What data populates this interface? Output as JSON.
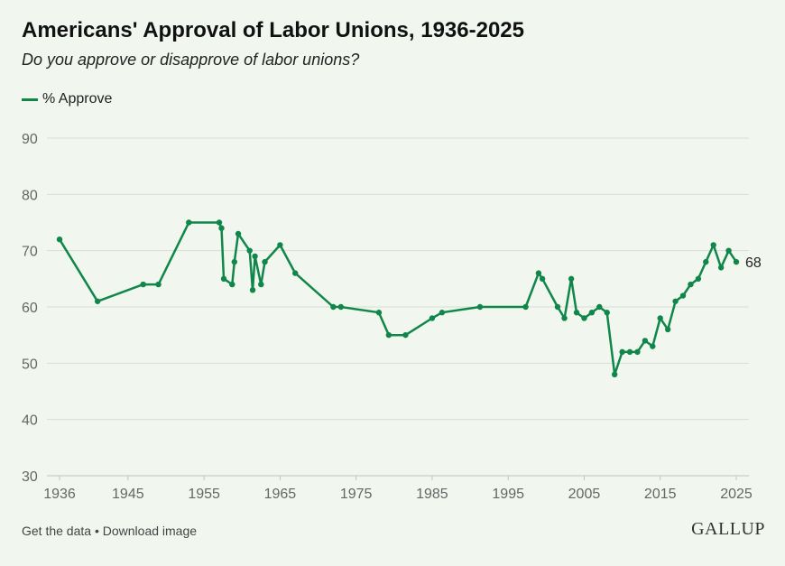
{
  "title": "Americans' Approval of Labor Unions, 1936-2025",
  "subtitle": "Do you approve or disapprove of labor unions?",
  "footer": {
    "get_data": "Get the data",
    "separator": "•",
    "download": "Download image",
    "brand": "GALLUP"
  },
  "colors": {
    "series": "#10864a",
    "grid": "#d8ddd6",
    "axis_text": "#666666",
    "background": "#f1f7ef"
  },
  "chart_data": {
    "type": "line",
    "title": "Americans' Approval of Labor Unions, 1936-2025",
    "subtitle": "Do you approve or disapprove of labor unions?",
    "xlabel": "",
    "ylabel": "",
    "xlim": [
      1936,
      2025
    ],
    "ylim": [
      30,
      90
    ],
    "grid": true,
    "legend": "top-left",
    "x_ticks": [
      1936,
      1945,
      1955,
      1965,
      1975,
      1985,
      1995,
      2005,
      2015,
      2025
    ],
    "y_ticks": [
      30,
      40,
      50,
      60,
      70,
      80,
      90
    ],
    "end_label": "68",
    "series": [
      {
        "name": "% Approve",
        "color": "#10864a",
        "points": [
          [
            1936,
            72
          ],
          [
            1941,
            61
          ],
          [
            1947,
            64
          ],
          [
            1949,
            64
          ],
          [
            1953,
            75
          ],
          [
            1957,
            75
          ],
          [
            1957.3,
            74
          ],
          [
            1957.6,
            65
          ],
          [
            1958.7,
            64
          ],
          [
            1959,
            68
          ],
          [
            1959.5,
            73
          ],
          [
            1961,
            70
          ],
          [
            1961.4,
            63
          ],
          [
            1961.7,
            69
          ],
          [
            1962.5,
            64
          ],
          [
            1963,
            68
          ],
          [
            1965,
            71
          ],
          [
            1967,
            66
          ],
          [
            1972,
            60
          ],
          [
            1973,
            60
          ],
          [
            1978,
            59
          ],
          [
            1979.3,
            55
          ],
          [
            1981.5,
            55
          ],
          [
            1985,
            58
          ],
          [
            1986.3,
            59
          ],
          [
            1991.3,
            60
          ],
          [
            1997.3,
            60
          ],
          [
            1999,
            66
          ],
          [
            1999.5,
            65
          ],
          [
            2001.5,
            60
          ],
          [
            2002.4,
            58
          ],
          [
            2003.3,
            65
          ],
          [
            2004,
            59
          ],
          [
            2005,
            58
          ],
          [
            2006,
            59
          ],
          [
            2007,
            60
          ],
          [
            2008,
            59
          ],
          [
            2009,
            48
          ],
          [
            2010,
            52
          ],
          [
            2011,
            52
          ],
          [
            2012,
            52
          ],
          [
            2013,
            54
          ],
          [
            2014,
            53
          ],
          [
            2015,
            58
          ],
          [
            2016,
            56
          ],
          [
            2017,
            61
          ],
          [
            2018,
            62
          ],
          [
            2019,
            64
          ],
          [
            2020,
            65
          ],
          [
            2021,
            68
          ],
          [
            2022,
            71
          ],
          [
            2023,
            67
          ],
          [
            2024,
            70
          ],
          [
            2025,
            68
          ]
        ]
      }
    ]
  }
}
